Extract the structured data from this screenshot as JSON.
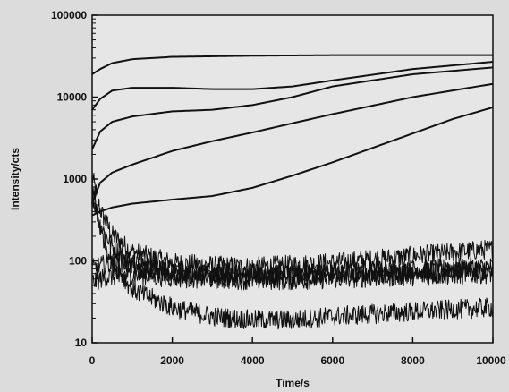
{
  "chart_data": {
    "type": "line",
    "title": "",
    "xlabel": "Time/s",
    "ylabel": "Intensity/cts",
    "xlim": [
      0,
      10000
    ],
    "ylim": [
      10,
      100000
    ],
    "yscale": "log",
    "grid": false,
    "legend": "none",
    "x_ticks": [
      0,
      2000,
      4000,
      6000,
      8000,
      10000
    ],
    "x_tick_labels": [
      "0",
      "2000",
      "4000",
      "6000",
      "8000",
      "10000"
    ],
    "y_ticks": [
      10,
      100,
      1000,
      10000,
      100000
    ],
    "y_tick_labels": [
      "10",
      "100",
      "1000",
      "10000",
      "100000"
    ],
    "line_color": "#111111",
    "series": [
      {
        "x": [
          0,
          200,
          500,
          1000,
          2000,
          4000,
          6000,
          8000,
          10000
        ],
        "values": [
          19000,
          22000,
          26000,
          29000,
          31000,
          32000,
          32500,
          32500,
          32500
        ]
      },
      {
        "x": [
          0,
          200,
          500,
          1000,
          2000,
          3000,
          4000,
          5000,
          6000,
          8000,
          10000
        ],
        "values": [
          7000,
          9500,
          12000,
          13000,
          13000,
          12500,
          12500,
          13500,
          16000,
          22000,
          27000
        ]
      },
      {
        "x": [
          0,
          200,
          500,
          1000,
          2000,
          3000,
          4000,
          5000,
          6000,
          8000,
          10000
        ],
        "values": [
          2300,
          3800,
          5000,
          5800,
          6700,
          7000,
          8000,
          10000,
          13500,
          19000,
          23000
        ]
      },
      {
        "x": [
          0,
          200,
          500,
          1000,
          2000,
          3000,
          4000,
          5000,
          6000,
          8000,
          10000
        ],
        "values": [
          500,
          900,
          1200,
          1500,
          2200,
          2900,
          3700,
          4800,
          6200,
          10000,
          14500
        ]
      },
      {
        "x": [
          0,
          200,
          500,
          1000,
          2000,
          3000,
          4000,
          5000,
          6000,
          7000,
          8000,
          9000,
          10000
        ],
        "values": [
          360,
          400,
          450,
          500,
          560,
          620,
          780,
          1100,
          1600,
          2400,
          3600,
          5400,
          7500
        ]
      },
      {
        "x": [
          0,
          200,
          500,
          1000,
          2000,
          3000,
          4000,
          6000,
          8000,
          10000
        ],
        "values": [
          1100,
          420,
          210,
          130,
          95,
          88,
          85,
          95,
          115,
          140
        ]
      },
      {
        "x": [
          0,
          200,
          500,
          1000,
          2000,
          3000,
          4000,
          6000,
          8000,
          10000
        ],
        "values": [
          650,
          280,
          150,
          95,
          72,
          65,
          65,
          70,
          78,
          85
        ]
      },
      {
        "x": [
          0,
          300,
          800,
          1500,
          2000,
          3000,
          4000,
          5000,
          6000,
          8000,
          10000
        ],
        "values": [
          55,
          62,
          68,
          65,
          62,
          60,
          58,
          58,
          60,
          65,
          70
        ]
      },
      {
        "x": [
          0,
          300,
          800,
          1500,
          2000,
          3000,
          4000,
          5000,
          6000,
          8000,
          10000
        ],
        "values": [
          80,
          90,
          92,
          82,
          75,
          70,
          68,
          68,
          70,
          72,
          75
        ]
      },
      {
        "x": [
          0,
          200,
          500,
          1000,
          2000,
          3000,
          4000,
          5000,
          6000,
          8000,
          10000
        ],
        "values": [
          900,
          250,
          95,
          45,
          27,
          21,
          19,
          19,
          21,
          24,
          27
        ]
      }
    ]
  }
}
